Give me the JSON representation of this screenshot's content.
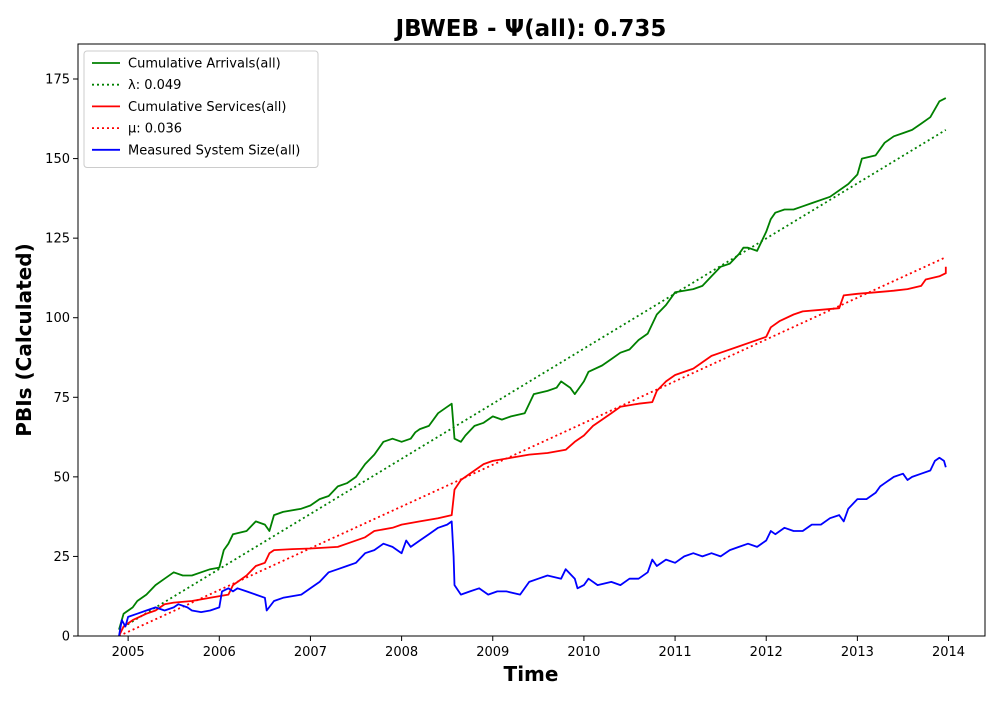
{
  "chart_data": {
    "type": "line",
    "title": "JBWEB -  Ψ(all): 0.735",
    "xlabel": "Time",
    "ylabel": "PBIs (Calculated)",
    "xlim": [
      2004.45,
      2014.4
    ],
    "ylim": [
      0,
      186
    ],
    "x_ticks": [
      2005,
      2006,
      2007,
      2008,
      2009,
      2010,
      2011,
      2012,
      2013,
      2014
    ],
    "x_tick_labels": [
      "2005",
      "2006",
      "2007",
      "2008",
      "2009",
      "2010",
      "2011",
      "2012",
      "2013",
      "2014"
    ],
    "y_ticks": [
      0,
      25,
      50,
      75,
      100,
      125,
      150,
      175
    ],
    "y_tick_labels": [
      "0",
      "25",
      "50",
      "75",
      "100",
      "125",
      "150",
      "175"
    ],
    "grid": false,
    "legend_position": "top-left",
    "series": [
      {
        "name": "Cumulative Arrivals(all)",
        "color": "#008000",
        "style": "solid",
        "points": [
          [
            2004.9,
            2
          ],
          [
            2004.95,
            7
          ],
          [
            2005.05,
            9
          ],
          [
            2005.1,
            11
          ],
          [
            2005.2,
            13
          ],
          [
            2005.3,
            16
          ],
          [
            2005.4,
            18
          ],
          [
            2005.5,
            20
          ],
          [
            2005.6,
            19
          ],
          [
            2005.7,
            19
          ],
          [
            2005.8,
            20
          ],
          [
            2005.9,
            21
          ],
          [
            2006.0,
            21.5
          ],
          [
            2006.05,
            27
          ],
          [
            2006.1,
            29
          ],
          [
            2006.15,
            32
          ],
          [
            2006.3,
            33
          ],
          [
            2006.4,
            36
          ],
          [
            2006.5,
            35
          ],
          [
            2006.55,
            33
          ],
          [
            2006.6,
            38
          ],
          [
            2006.7,
            39
          ],
          [
            2006.9,
            40
          ],
          [
            2007.0,
            41
          ],
          [
            2007.1,
            43
          ],
          [
            2007.2,
            44
          ],
          [
            2007.3,
            47
          ],
          [
            2007.4,
            48
          ],
          [
            2007.5,
            50
          ],
          [
            2007.6,
            54
          ],
          [
            2007.7,
            57
          ],
          [
            2007.8,
            61
          ],
          [
            2007.9,
            62
          ],
          [
            2008.0,
            61
          ],
          [
            2008.1,
            62
          ],
          [
            2008.15,
            64
          ],
          [
            2008.2,
            65
          ],
          [
            2008.3,
            66
          ],
          [
            2008.4,
            70
          ],
          [
            2008.5,
            72
          ],
          [
            2008.55,
            73
          ],
          [
            2008.58,
            62
          ],
          [
            2008.65,
            61
          ],
          [
            2008.7,
            63
          ],
          [
            2008.8,
            66
          ],
          [
            2008.9,
            67
          ],
          [
            2009.0,
            69
          ],
          [
            2009.1,
            68
          ],
          [
            2009.2,
            69
          ],
          [
            2009.35,
            70
          ],
          [
            2009.45,
            76
          ],
          [
            2009.6,
            77
          ],
          [
            2009.7,
            78
          ],
          [
            2009.75,
            80
          ],
          [
            2009.85,
            78
          ],
          [
            2009.9,
            76
          ],
          [
            2010.0,
            80
          ],
          [
            2010.05,
            83
          ],
          [
            2010.2,
            85
          ],
          [
            2010.3,
            87
          ],
          [
            2010.4,
            89
          ],
          [
            2010.5,
            90
          ],
          [
            2010.6,
            93
          ],
          [
            2010.7,
            95
          ],
          [
            2010.8,
            101
          ],
          [
            2010.9,
            104
          ],
          [
            2011.0,
            108
          ],
          [
            2011.2,
            109
          ],
          [
            2011.3,
            110
          ],
          [
            2011.4,
            113
          ],
          [
            2011.5,
            116
          ],
          [
            2011.6,
            117
          ],
          [
            2011.7,
            120
          ],
          [
            2011.75,
            122
          ],
          [
            2011.8,
            122
          ],
          [
            2011.9,
            121
          ],
          [
            2012.0,
            127
          ],
          [
            2012.05,
            131
          ],
          [
            2012.1,
            133
          ],
          [
            2012.2,
            134
          ],
          [
            2012.3,
            134
          ],
          [
            2012.4,
            135
          ],
          [
            2012.5,
            136
          ],
          [
            2012.7,
            138
          ],
          [
            2012.9,
            142
          ],
          [
            2013.0,
            145
          ],
          [
            2013.05,
            150
          ],
          [
            2013.2,
            151
          ],
          [
            2013.3,
            155
          ],
          [
            2013.4,
            157
          ],
          [
            2013.5,
            158
          ],
          [
            2013.6,
            159
          ],
          [
            2013.7,
            161
          ],
          [
            2013.8,
            163
          ],
          [
            2013.9,
            168
          ],
          [
            2013.97,
            169
          ]
        ]
      },
      {
        "name": "λ: 0.049",
        "color": "#008000",
        "style": "dotted",
        "points": [
          [
            2004.9,
            2
          ],
          [
            2013.97,
            159
          ]
        ]
      },
      {
        "name": "Cumulative Services(all)",
        "color": "#ff0000",
        "style": "solid",
        "points": [
          [
            2004.9,
            0
          ],
          [
            2004.95,
            3
          ],
          [
            2005.05,
            5
          ],
          [
            2005.2,
            7
          ],
          [
            2005.3,
            8
          ],
          [
            2005.4,
            10
          ],
          [
            2005.5,
            10.5
          ],
          [
            2005.7,
            11
          ],
          [
            2005.9,
            12
          ],
          [
            2006.1,
            13
          ],
          [
            2006.15,
            16
          ],
          [
            2006.3,
            19
          ],
          [
            2006.4,
            22
          ],
          [
            2006.5,
            23
          ],
          [
            2006.55,
            26
          ],
          [
            2006.6,
            27
          ],
          [
            2006.8,
            27.3
          ],
          [
            2007.0,
            27.5
          ],
          [
            2007.3,
            28
          ],
          [
            2007.4,
            29
          ],
          [
            2007.6,
            31
          ],
          [
            2007.7,
            33
          ],
          [
            2007.9,
            34
          ],
          [
            2008.0,
            35
          ],
          [
            2008.2,
            36
          ],
          [
            2008.4,
            37
          ],
          [
            2008.55,
            38
          ],
          [
            2008.58,
            46
          ],
          [
            2008.65,
            49
          ],
          [
            2008.8,
            52
          ],
          [
            2008.9,
            54
          ],
          [
            2009.0,
            55
          ],
          [
            2009.2,
            56
          ],
          [
            2009.4,
            57
          ],
          [
            2009.6,
            57.5
          ],
          [
            2009.8,
            58.5
          ],
          [
            2009.9,
            61
          ],
          [
            2010.0,
            63
          ],
          [
            2010.1,
            66
          ],
          [
            2010.2,
            68
          ],
          [
            2010.3,
            70
          ],
          [
            2010.4,
            72
          ],
          [
            2010.6,
            73
          ],
          [
            2010.75,
            73.5
          ],
          [
            2010.8,
            77
          ],
          [
            2010.9,
            80
          ],
          [
            2011.0,
            82
          ],
          [
            2011.2,
            84
          ],
          [
            2011.3,
            86
          ],
          [
            2011.4,
            88
          ],
          [
            2011.5,
            89
          ],
          [
            2011.7,
            91
          ],
          [
            2011.8,
            92
          ],
          [
            2012.0,
            94
          ],
          [
            2012.05,
            97
          ],
          [
            2012.15,
            99
          ],
          [
            2012.3,
            101
          ],
          [
            2012.4,
            102
          ],
          [
            2012.6,
            102.5
          ],
          [
            2012.8,
            103
          ],
          [
            2012.85,
            107
          ],
          [
            2013.0,
            107.5
          ],
          [
            2013.2,
            108
          ],
          [
            2013.4,
            108.5
          ],
          [
            2013.55,
            109
          ],
          [
            2013.7,
            110
          ],
          [
            2013.75,
            112
          ],
          [
            2013.9,
            113
          ],
          [
            2013.97,
            114
          ],
          [
            2013.97,
            116
          ]
        ]
      },
      {
        "name": "μ: 0.036",
        "color": "#ff0000",
        "style": "dotted",
        "points": [
          [
            2004.9,
            0
          ],
          [
            2013.97,
            119
          ]
        ]
      },
      {
        "name": "Measured System Size(all)",
        "color": "#0000ff",
        "style": "solid",
        "points": [
          [
            2004.9,
            0
          ],
          [
            2004.93,
            5
          ],
          [
            2004.97,
            3
          ],
          [
            2005.0,
            6
          ],
          [
            2005.1,
            7
          ],
          [
            2005.2,
            8
          ],
          [
            2005.3,
            9
          ],
          [
            2005.4,
            8
          ],
          [
            2005.5,
            9
          ],
          [
            2005.55,
            10
          ],
          [
            2005.65,
            9
          ],
          [
            2005.7,
            8
          ],
          [
            2005.8,
            7.5
          ],
          [
            2005.9,
            8
          ],
          [
            2006.0,
            9
          ],
          [
            2006.03,
            14
          ],
          [
            2006.1,
            15
          ],
          [
            2006.15,
            14
          ],
          [
            2006.2,
            15
          ],
          [
            2006.3,
            14
          ],
          [
            2006.4,
            13
          ],
          [
            2006.5,
            12
          ],
          [
            2006.52,
            8
          ],
          [
            2006.6,
            11
          ],
          [
            2006.7,
            12
          ],
          [
            2006.9,
            13
          ],
          [
            2007.0,
            15
          ],
          [
            2007.1,
            17
          ],
          [
            2007.2,
            20
          ],
          [
            2007.3,
            21
          ],
          [
            2007.4,
            22
          ],
          [
            2007.5,
            23
          ],
          [
            2007.6,
            26
          ],
          [
            2007.7,
            27
          ],
          [
            2007.8,
            29
          ],
          [
            2007.9,
            28
          ],
          [
            2008.0,
            26
          ],
          [
            2008.05,
            30
          ],
          [
            2008.1,
            28
          ],
          [
            2008.2,
            30
          ],
          [
            2008.3,
            32
          ],
          [
            2008.4,
            34
          ],
          [
            2008.5,
            35
          ],
          [
            2008.55,
            36
          ],
          [
            2008.57,
            25
          ],
          [
            2008.58,
            16
          ],
          [
            2008.65,
            13
          ],
          [
            2008.75,
            14
          ],
          [
            2008.85,
            15
          ],
          [
            2008.95,
            13
          ],
          [
            2009.05,
            14
          ],
          [
            2009.15,
            14
          ],
          [
            2009.3,
            13
          ],
          [
            2009.4,
            17
          ],
          [
            2009.5,
            18
          ],
          [
            2009.6,
            19
          ],
          [
            2009.75,
            18
          ],
          [
            2009.8,
            21
          ],
          [
            2009.9,
            18
          ],
          [
            2009.93,
            15
          ],
          [
            2010.0,
            16
          ],
          [
            2010.05,
            18
          ],
          [
            2010.15,
            16
          ],
          [
            2010.3,
            17
          ],
          [
            2010.4,
            16
          ],
          [
            2010.5,
            18
          ],
          [
            2010.6,
            18
          ],
          [
            2010.7,
            20
          ],
          [
            2010.75,
            24
          ],
          [
            2010.8,
            22
          ],
          [
            2010.9,
            24
          ],
          [
            2011.0,
            23
          ],
          [
            2011.1,
            25
          ],
          [
            2011.2,
            26
          ],
          [
            2011.3,
            25
          ],
          [
            2011.4,
            26
          ],
          [
            2011.5,
            25
          ],
          [
            2011.6,
            27
          ],
          [
            2011.7,
            28
          ],
          [
            2011.8,
            29
          ],
          [
            2011.9,
            28
          ],
          [
            2012.0,
            30
          ],
          [
            2012.05,
            33
          ],
          [
            2012.1,
            32
          ],
          [
            2012.2,
            34
          ],
          [
            2012.3,
            33
          ],
          [
            2012.4,
            33
          ],
          [
            2012.5,
            35
          ],
          [
            2012.6,
            35
          ],
          [
            2012.7,
            37
          ],
          [
            2012.8,
            38
          ],
          [
            2012.85,
            36
          ],
          [
            2012.9,
            40
          ],
          [
            2013.0,
            43
          ],
          [
            2013.1,
            43
          ],
          [
            2013.2,
            45
          ],
          [
            2013.25,
            47
          ],
          [
            2013.3,
            48
          ],
          [
            2013.4,
            50
          ],
          [
            2013.5,
            51
          ],
          [
            2013.55,
            49
          ],
          [
            2013.6,
            50
          ],
          [
            2013.7,
            51
          ],
          [
            2013.8,
            52
          ],
          [
            2013.85,
            55
          ],
          [
            2013.9,
            56
          ],
          [
            2013.95,
            55
          ],
          [
            2013.97,
            53
          ]
        ]
      }
    ]
  }
}
